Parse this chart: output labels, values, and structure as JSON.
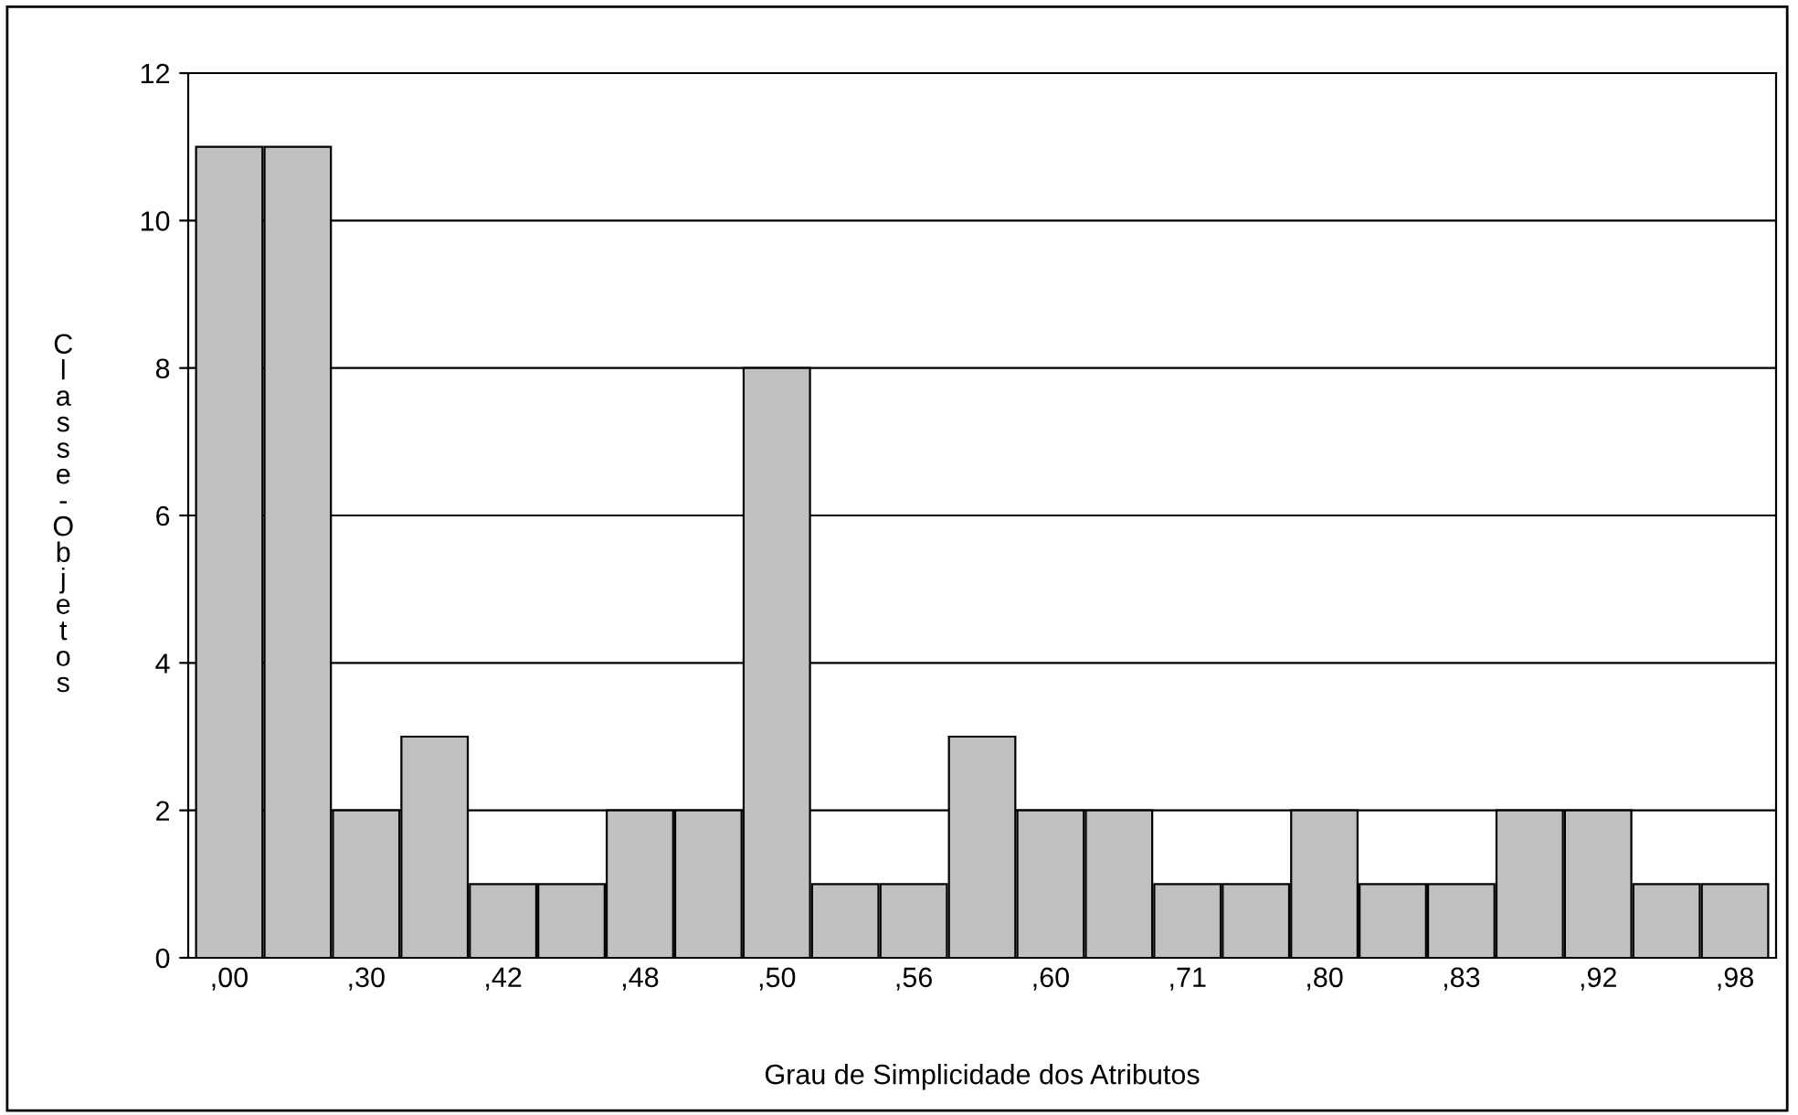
{
  "chart_data": {
    "type": "bar",
    "xlabel": "Grau de Simplicidade dos Atributos",
    "ylabel": "Classe-Objetos",
    "categories": [
      ",00",
      null,
      ",30",
      null,
      ",42",
      null,
      ",48",
      null,
      ",50",
      null,
      ",56",
      null,
      ",60",
      null,
      ",71",
      null,
      ",80",
      null,
      ",83",
      null,
      ",92",
      null,
      ",98"
    ],
    "values": [
      11,
      11,
      2,
      3,
      1,
      1,
      2,
      2,
      8,
      1,
      1,
      3,
      2,
      2,
      1,
      1,
      2,
      1,
      1,
      2,
      2,
      1,
      1
    ],
    "color": "#c0c0c0",
    "ylim": [
      0,
      12
    ],
    "yticks": [
      0,
      2,
      4,
      6,
      8,
      10,
      12
    ],
    "grid": "y"
  }
}
